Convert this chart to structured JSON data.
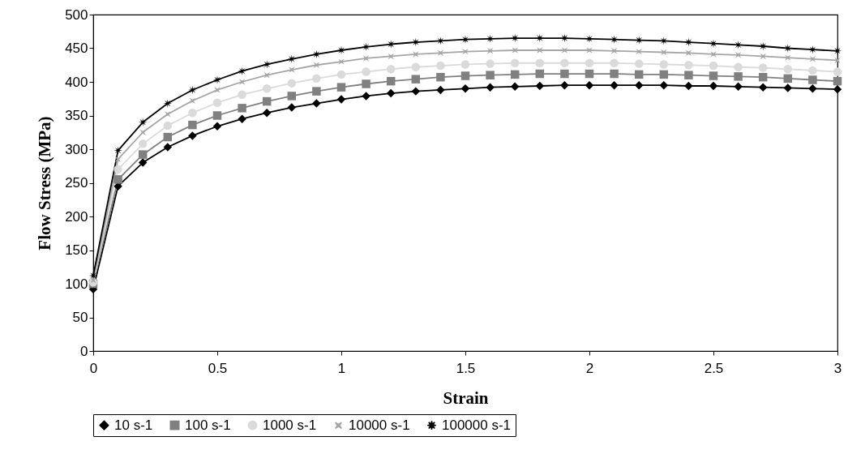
{
  "chart_data": {
    "type": "line",
    "xlabel": "Strain",
    "ylabel": "Flow Stress (MPa)",
    "x": [
      0,
      0.1,
      0.2,
      0.3,
      0.4,
      0.5,
      0.6,
      0.7,
      0.8,
      0.9,
      1,
      1.1,
      1.2,
      1.3,
      1.4,
      1.5,
      1.6,
      1.7,
      1.8,
      1.9,
      2,
      2.1,
      2.2,
      2.3,
      2.4,
      2.5,
      2.6,
      2.7,
      2.8,
      2.9,
      3
    ],
    "series": [
      {
        "name": "10 s-1",
        "color": "#000000",
        "marker": "diamond",
        "values": [
          92,
          245,
          280,
          303,
          320,
          334,
          345,
          354,
          362,
          368,
          374,
          379,
          383,
          386,
          388,
          390,
          392,
          393,
          394,
          395,
          395,
          395,
          395,
          395,
          394,
          394,
          393,
          392,
          391,
          390,
          389
        ]
      },
      {
        "name": "100 s-1",
        "color": "#808080",
        "marker": "square",
        "values": [
          100,
          255,
          292,
          318,
          336,
          350,
          361,
          371,
          379,
          386,
          392,
          397,
          401,
          404,
          407,
          409,
          410,
          411,
          412,
          412,
          412,
          412,
          411,
          411,
          410,
          409,
          408,
          407,
          405,
          403,
          401
        ]
      },
      {
        "name": "1000 s-1",
        "color": "#dadada",
        "marker": "circle",
        "values": [
          102,
          270,
          308,
          335,
          354,
          369,
          381,
          390,
          398,
          405,
          411,
          415,
          419,
          422,
          424,
          426,
          427,
          428,
          428,
          428,
          428,
          428,
          427,
          426,
          425,
          424,
          422,
          421,
          419,
          417,
          415
        ]
      },
      {
        "name": "10000 s-1",
        "color": "#a6a6a6",
        "marker": "cross",
        "values": [
          105,
          285,
          325,
          352,
          372,
          388,
          400,
          410,
          418,
          425,
          430,
          435,
          438,
          441,
          443,
          445,
          446,
          447,
          447,
          447,
          447,
          446,
          445,
          444,
          443,
          441,
          440,
          438,
          436,
          434,
          432
        ]
      },
      {
        "name": "100000 s-1",
        "color": "#000000",
        "marker": "star",
        "values": [
          112,
          298,
          340,
          368,
          388,
          403,
          416,
          426,
          434,
          441,
          447,
          452,
          456,
          459,
          461,
          463,
          464,
          465,
          465,
          465,
          464,
          463,
          462,
          461,
          459,
          457,
          455,
          453,
          450,
          448,
          446
        ]
      }
    ],
    "xlim": [
      0,
      3
    ],
    "xticks": [
      0,
      0.5,
      1,
      1.5,
      2,
      2.5,
      3
    ],
    "ylim": [
      0,
      500
    ],
    "yticks": [
      0,
      50,
      100,
      150,
      200,
      250,
      300,
      350,
      400,
      450,
      500
    ],
    "legend": "bottom"
  }
}
